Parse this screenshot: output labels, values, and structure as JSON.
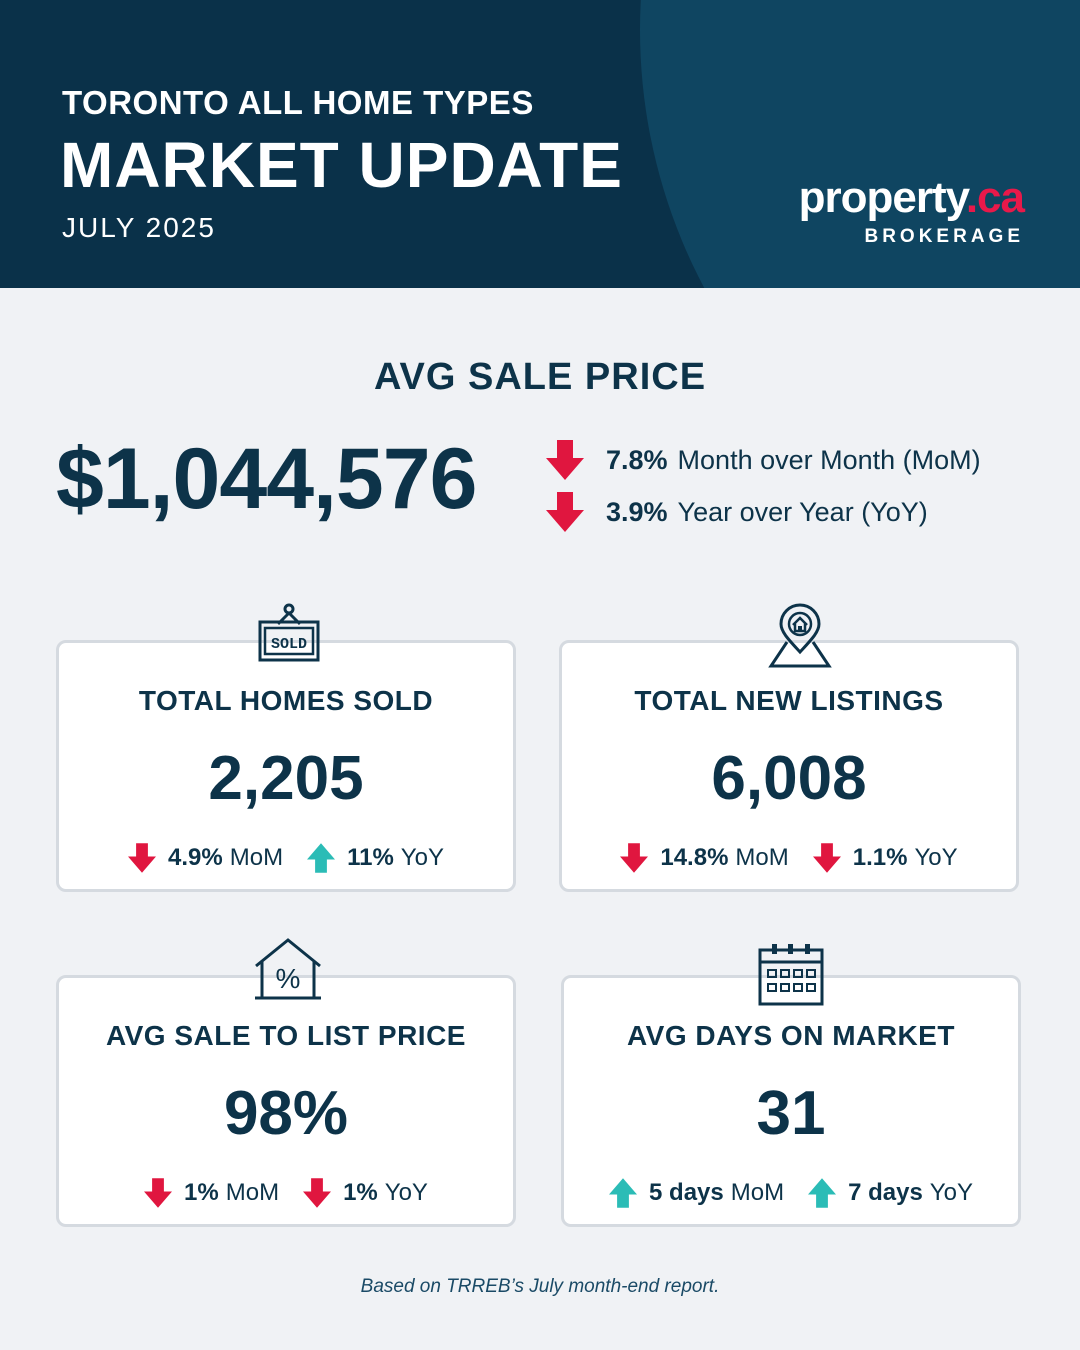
{
  "header": {
    "line1": "TORONTO ALL HOME TYPES",
    "line2": "MARKET UPDATE",
    "line3": "JULY 2025",
    "logo_main": "property",
    "logo_dot": ".",
    "logo_accent": "ca",
    "logo_sub": "BROKERAGE"
  },
  "avg_sale": {
    "title": "AVG SALE PRICE",
    "value": "$1,044,576",
    "mom_value": "7.8%",
    "mom_label": "Month over Month (MoM)",
    "mom_direction": "down",
    "yoy_value": "3.9%",
    "yoy_label": "Year over Year (YoY)",
    "yoy_direction": "down"
  },
  "cards": [
    {
      "title": "TOTAL HOMES SOLD",
      "value": "2,205",
      "icon": "sold-sign-icon",
      "mom": "4.9%",
      "mom_label": "MoM",
      "mom_direction": "down",
      "yoy": "11%",
      "yoy_label": "YoY",
      "yoy_direction": "up"
    },
    {
      "title": "TOTAL NEW LISTINGS",
      "value": "6,008",
      "icon": "location-pin-home-icon",
      "mom": "14.8%",
      "mom_label": "MoM",
      "mom_direction": "down",
      "yoy": "1.1%",
      "yoy_label": "YoY",
      "yoy_direction": "down"
    },
    {
      "title": "AVG SALE TO LIST PRICE",
      "value": "98%",
      "icon": "house-percent-icon",
      "mom": "1%",
      "mom_label": "MoM",
      "mom_direction": "down",
      "yoy": "1%",
      "yoy_label": "YoY",
      "yoy_direction": "down"
    },
    {
      "title": "AVG DAYS ON MARKET",
      "value": "31",
      "icon": "calendar-icon",
      "mom": "5 days",
      "mom_label": "MoM",
      "mom_direction": "up",
      "yoy": "7 days",
      "yoy_label": "YoY",
      "yoy_direction": "up"
    }
  ],
  "footer": "Based on TRREB’s July month-end report.",
  "colors": {
    "navy": "#0a3149",
    "header_arc": "#0f4561",
    "down": "#e0163f",
    "up": "#2bbcb6",
    "text": "#0d3349",
    "accent": "#e8194a"
  }
}
